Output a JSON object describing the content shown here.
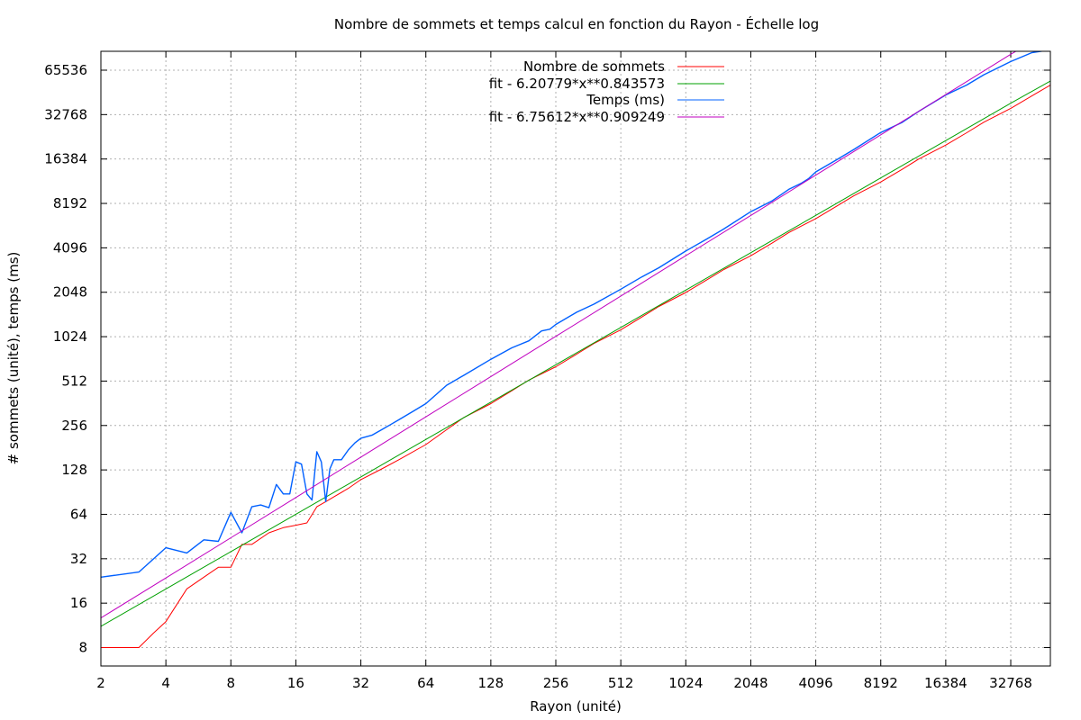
{
  "chart_data": {
    "type": "line",
    "title": "Nombre de sommets et temps calcul en fonction du Rayon - Échelle log",
    "xlabel": "Rayon (unité)",
    "ylabel": "# sommets (unité), temps (ms)",
    "x_scale": "log2",
    "y_scale": "log2",
    "xlim": [
      2,
      50000
    ],
    "ylim": [
      6,
      88000
    ],
    "x_ticks": [
      "2",
      "4",
      "8",
      "16",
      "32",
      "64",
      "128",
      "256",
      "512",
      "1024",
      "2048",
      "4096",
      "8192",
      "16384",
      "32768"
    ],
    "y_ticks": [
      "8",
      "16",
      "32",
      "64",
      "128",
      "256",
      "512",
      "1024",
      "2048",
      "4096",
      "8192",
      "16384",
      "32768",
      "65536"
    ],
    "grid": true,
    "legend_position": "top-center",
    "series": [
      {
        "name": "Nombre de sommets",
        "color": "#ff0000",
        "x": [
          2,
          2.5,
          3,
          3.5,
          4,
          5,
          6,
          7,
          8,
          9,
          10,
          12,
          14,
          16,
          18,
          20,
          22,
          24,
          28,
          32,
          40,
          48,
          64,
          80,
          96,
          128,
          160,
          192,
          256,
          320,
          384,
          512,
          640,
          768,
          1024,
          1280,
          1536,
          2048,
          2560,
          3072,
          4096,
          5120,
          6144,
          8192,
          10240,
          12288,
          16384,
          20480,
          24576,
          32768,
          40960,
          50000
        ],
        "y": [
          8,
          8,
          8,
          10,
          12,
          20,
          24,
          28,
          28,
          40,
          40,
          48,
          52,
          54,
          56,
          72,
          78,
          84,
          96,
          110,
          130,
          150,
          190,
          240,
          290,
          360,
          440,
          520,
          640,
          780,
          920,
          1140,
          1390,
          1640,
          2040,
          2480,
          2920,
          3620,
          4400,
          5200,
          6460,
          7850,
          9220,
          11450,
          13900,
          16380,
          20350,
          24700,
          29100,
          36100,
          43800,
          52000
        ]
      },
      {
        "name": "fit - 6.20779*x**0.843573",
        "color": "#00a000",
        "x": [
          2,
          4,
          8,
          16,
          32,
          64,
          128,
          256,
          512,
          1024,
          2048,
          4096,
          8192,
          16384,
          32768,
          50000
        ],
        "y": [
          11.15,
          19.97,
          35.78,
          64.1,
          114.8,
          205.7,
          368.6,
          660.3,
          1183,
          2120,
          3797,
          6803,
          12190,
          21840,
          39120,
          55360
        ]
      },
      {
        "name": "Temps (ms)",
        "color": "#0060ff",
        "x": [
          2,
          3,
          4,
          5,
          6,
          7,
          8,
          9,
          10,
          11,
          12,
          13,
          14,
          15,
          16,
          17,
          18,
          19,
          20,
          21,
          22,
          23,
          24,
          26,
          28,
          30,
          32,
          36,
          40,
          44,
          48,
          56,
          64,
          80,
          96,
          128,
          160,
          192,
          220,
          240,
          256,
          320,
          384,
          512,
          640,
          768,
          1024,
          1280,
          1536,
          2048,
          2560,
          3072,
          3500,
          3800,
          4096,
          5120,
          6144,
          8192,
          10240,
          12288,
          16384,
          20480,
          24576,
          32768,
          40960,
          50000
        ],
        "y": [
          24,
          26,
          38,
          35,
          43,
          42,
          66,
          48,
          72,
          74,
          71,
          102,
          88,
          88,
          145,
          140,
          88,
          80,
          170,
          145,
          78,
          130,
          150,
          150,
          175,
          195,
          210,
          220,
          240,
          260,
          280,
          320,
          360,
          480,
          560,
          720,
          860,
          960,
          1120,
          1150,
          1240,
          1500,
          1700,
          2150,
          2600,
          3000,
          3900,
          4700,
          5500,
          7200,
          8500,
          10200,
          11200,
          12100,
          13400,
          16200,
          19000,
          24800,
          28900,
          34500,
          44500,
          52000,
          61000,
          75000,
          86000,
          90000
        ]
      },
      {
        "name": "fit - 6.75612*x**0.909249",
        "color": "#c000c0",
        "x": [
          2,
          4,
          8,
          16,
          32,
          64,
          128,
          256,
          512,
          1024,
          2048,
          4096,
          8192,
          16384,
          32768,
          50000
        ],
        "y": [
          12.7,
          23.7,
          44.4,
          83.2,
          156.2,
          292.9,
          549.3,
          1030,
          1932,
          3623,
          6794,
          12740,
          23890,
          44810,
          84030,
          120000
        ]
      }
    ]
  }
}
